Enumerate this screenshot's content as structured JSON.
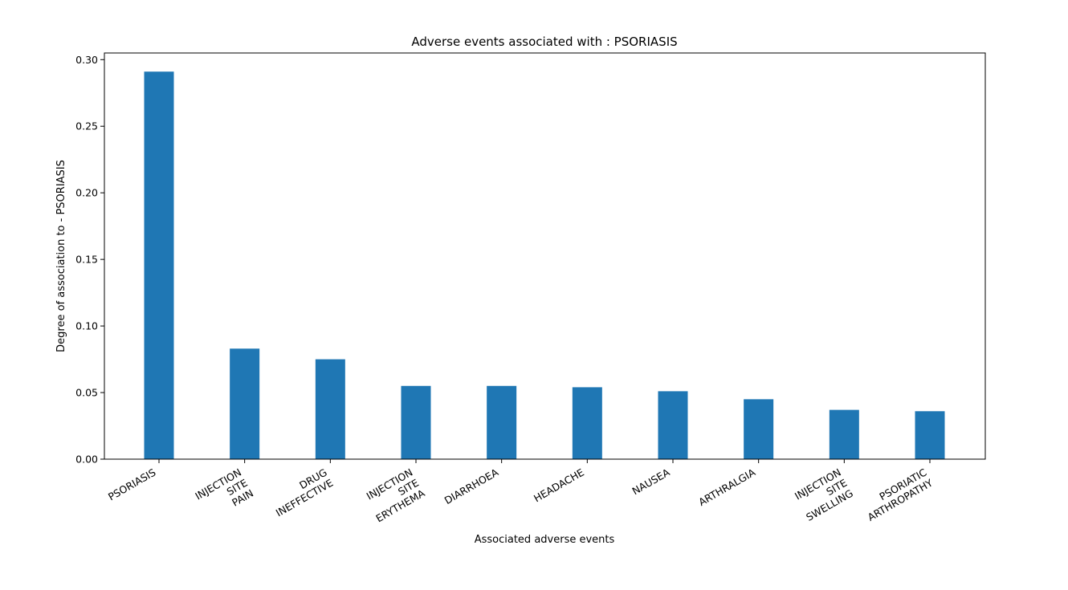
{
  "chart_data": {
    "type": "bar",
    "title": "Adverse events associated with : PSORIASIS",
    "xlabel": "Associated adverse events",
    "ylabel": "Degree of association to - PSORIASIS",
    "categories": [
      "PSORIASIS",
      "INJECTION\nSITE\nPAIN",
      "DRUG\nINEFFECTIVE",
      "INJECTION\nSITE\nERYTHEMA",
      "DIARRHOEA",
      "HEADACHE",
      "NAUSEA",
      "ARTHRALGIA",
      "INJECTION\nSITE\nSWELLING",
      "PSORIATIC\nARTHROPATHY"
    ],
    "values": [
      0.291,
      0.083,
      0.075,
      0.055,
      0.055,
      0.054,
      0.051,
      0.045,
      0.037,
      0.036
    ],
    "ylim": [
      0,
      0.305
    ],
    "yticks": [
      "0.00",
      "0.05",
      "0.10",
      "0.15",
      "0.20",
      "0.25",
      "0.30"
    ],
    "bar_color": "#1f77b4",
    "grid": false,
    "legend": "none"
  }
}
